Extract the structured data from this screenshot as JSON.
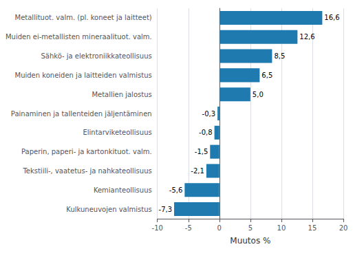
{
  "chart_data": {
    "type": "bar",
    "orientation": "horizontal",
    "categories": [
      "Kulkuneuvojen valmistus",
      "Kemianteollisuus",
      "Tekstiili-, vaatetus- ja nahkateollisuus",
      "Paperin, paperi- ja kartonkituot. valm.",
      "Elintarviketeollisuus",
      "Painaminen ja tallenteiden jäljentäminen",
      "Metallien jalostus",
      "Muiden koneiden ja laitteiden valmistus",
      "Sähkö- ja elektroniikkateollisuus",
      "Muiden ei-metallisten mineraalituot. valm.",
      "Metallituot. valm. (pl. koneet ja laitteet)"
    ],
    "values": [
      -7.3,
      -5.6,
      -2.1,
      -1.5,
      -0.8,
      -0.3,
      5.0,
      6.5,
      8.5,
      12.6,
      16.6
    ],
    "value_labels": [
      "-7,3",
      "-5,6",
      "-2,1",
      "-1,5",
      "-0,8",
      "-0,3",
      "5,0",
      "6,5",
      "8,5",
      "12,6",
      "16,6"
    ],
    "data_labels": true,
    "color": "#1f7aaf",
    "xlabel": "Muutos %",
    "xlim": [
      -10,
      20
    ],
    "xticks": [
      -10,
      -5,
      0,
      5,
      10,
      15,
      20
    ],
    "grid": true
  }
}
